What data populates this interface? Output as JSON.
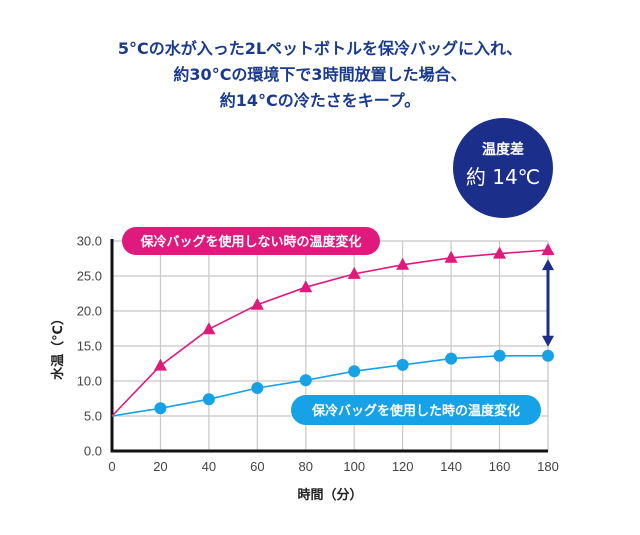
{
  "headline": {
    "line1": "5°Cの水が入った2Lペットボトルを保冷バッグに入れ、",
    "line2": "約30°Cの環境下で3時間放置した場合、",
    "line3": "約14°Cの冷たさをキープ。"
  },
  "badge": {
    "label": "温度差",
    "value": "約 14℃"
  },
  "colors": {
    "headline": "#1a3a8f",
    "badge": "#1b2f8a",
    "without_bag": "#e0197d",
    "with_bag": "#17a1e6",
    "arrow": "#1b2f8a"
  },
  "chart_data": {
    "type": "line",
    "title": "",
    "xlabel": "時間（分）",
    "ylabel": "水温（℃）",
    "x": [
      0,
      20,
      40,
      60,
      80,
      100,
      120,
      140,
      160,
      180
    ],
    "xlim": [
      0,
      180
    ],
    "ylim": [
      0,
      30
    ],
    "x_ticks": [
      "0",
      "20",
      "40",
      "60",
      "80",
      "100",
      "120",
      "140",
      "160",
      "180"
    ],
    "y_ticks": [
      "0.0",
      "5.0",
      "10.0",
      "15.0",
      "20.0",
      "25.0",
      "30.0"
    ],
    "y_tick_values": [
      0,
      5,
      10,
      15,
      20,
      25,
      30
    ],
    "grid": true,
    "series": [
      {
        "name": "保冷バッグを使用しない時の温度変化",
        "marker": "triangle",
        "values": [
          5.0,
          12.2,
          17.4,
          20.9,
          23.4,
          25.3,
          26.6,
          27.6,
          28.2,
          28.7
        ]
      },
      {
        "name": "保冷バッグを使用した時の温度変化",
        "marker": "circle",
        "values": [
          5.0,
          6.1,
          7.4,
          9.0,
          10.1,
          11.4,
          12.3,
          13.2,
          13.6,
          13.6
        ]
      }
    ],
    "annotations": [
      {
        "type": "double-arrow",
        "x": 180,
        "from": 28.7,
        "to": 13.6
      }
    ]
  }
}
